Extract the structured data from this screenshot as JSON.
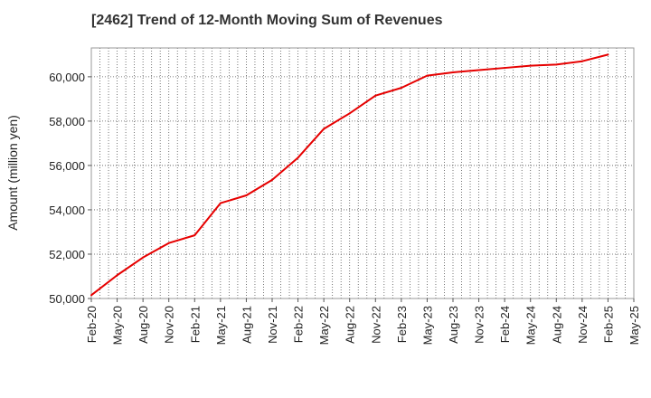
{
  "chart_data": {
    "type": "line",
    "title": "[2462]  Trend of 12-Month Moving Sum of Revenues",
    "ylabel": "Amount (million yen)",
    "xlabel": "",
    "ylim": [
      50000,
      61300
    ],
    "yticks": [
      50000,
      52000,
      54000,
      56000,
      58000,
      60000
    ],
    "ytick_labels": [
      "50,000",
      "52,000",
      "54,000",
      "56,000",
      "58,000",
      "60,000"
    ],
    "xtick_labels": [
      "Feb-20",
      "May-20",
      "Aug-20",
      "Nov-20",
      "Feb-21",
      "May-21",
      "Aug-21",
      "Nov-21",
      "Feb-22",
      "May-22",
      "Aug-22",
      "Nov-22",
      "Feb-23",
      "May-23",
      "Aug-23",
      "Nov-23",
      "Feb-24",
      "May-24",
      "Aug-24",
      "Nov-24",
      "Feb-25",
      "May-25"
    ],
    "grid": true,
    "series_color": "#e60000",
    "series": [
      {
        "x": [
          "Feb-20",
          "May-20",
          "Aug-20",
          "Nov-20",
          "Feb-21",
          "May-21",
          "Aug-21",
          "Nov-21",
          "Feb-22",
          "May-22",
          "Aug-22",
          "Nov-22",
          "Feb-23",
          "May-23",
          "Aug-23",
          "Nov-23",
          "Feb-24",
          "May-24",
          "Aug-24",
          "Nov-24",
          "Feb-25"
        ],
        "values": [
          50150,
          51050,
          51850,
          52500,
          52850,
          54300,
          54650,
          55350,
          56350,
          57650,
          58350,
          59150,
          59500,
          60050,
          60200,
          60300,
          60400,
          60500,
          60550,
          60700,
          61000
        ]
      }
    ]
  }
}
